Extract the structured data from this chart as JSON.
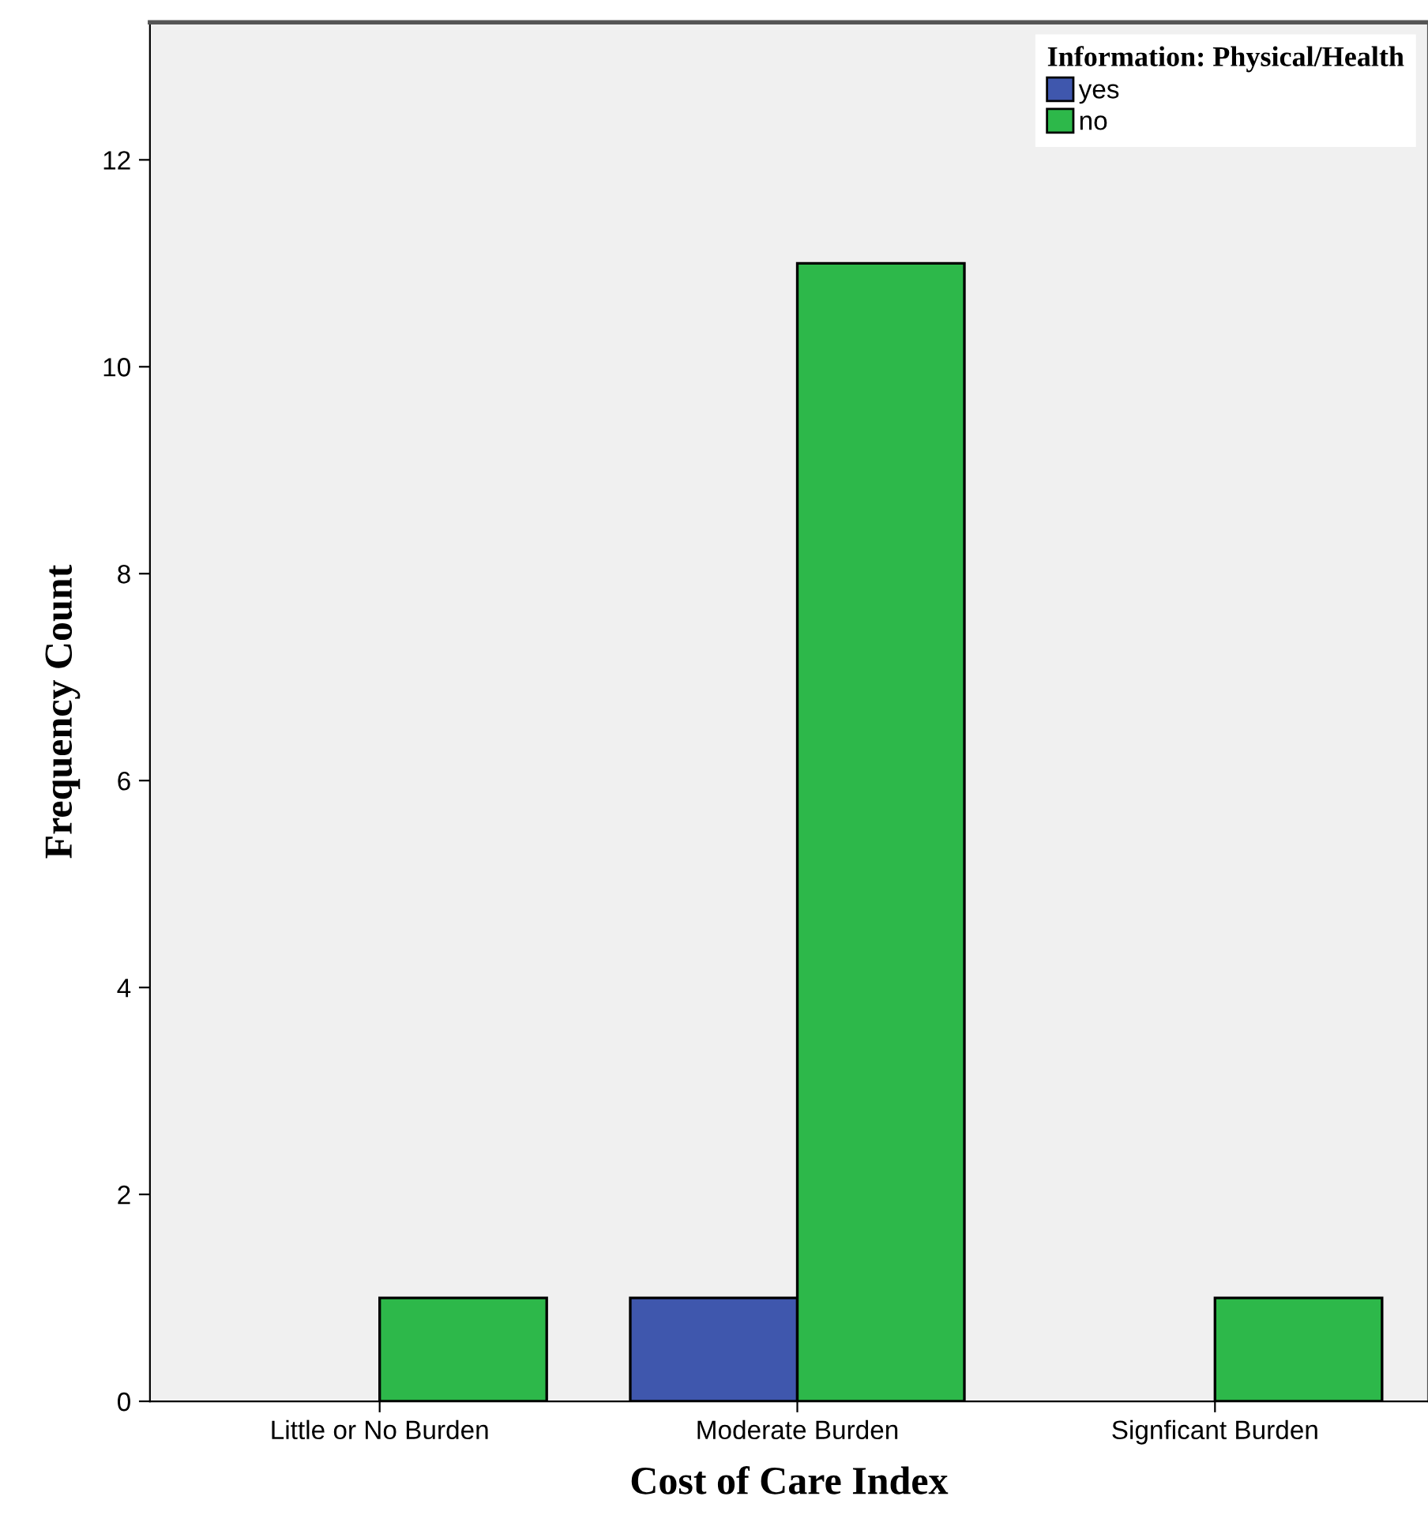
{
  "chart_data": {
    "type": "bar",
    "xlabel": "Cost of Care Index",
    "ylabel": "Frequency Count",
    "legend_title": "Information: Physical/Health",
    "categories": [
      "Little or No Burden",
      "Moderate Burden",
      "Signficant Burden"
    ],
    "series": [
      {
        "name": "yes",
        "color": "#3f57ad",
        "values": [
          null,
          1,
          null
        ]
      },
      {
        "name": "no",
        "color": "#2db84a",
        "values": [
          1,
          11,
          1
        ]
      }
    ],
    "ylim": [
      0,
      13.33
    ],
    "yticks": [
      0,
      2,
      4,
      6,
      8,
      10,
      12
    ],
    "grid": false,
    "legend": "top right"
  }
}
